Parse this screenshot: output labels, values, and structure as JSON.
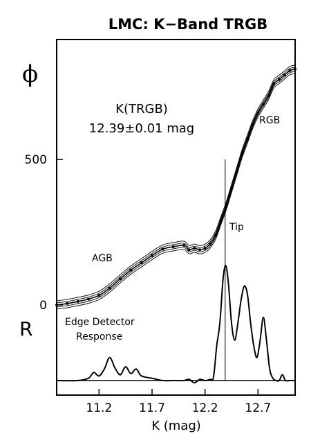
{
  "chart_data": {
    "type": "line",
    "title": "LMC: K−Band TRGB",
    "xlabel": "K (mag)",
    "y_symbol": "ϕ",
    "y2_symbol": "R",
    "xlim": [
      10.8,
      13.05
    ],
    "ylim": [
      0,
      830
    ],
    "x_ticks": [
      "11.2",
      "11.7",
      "12.2",
      "12.7"
    ],
    "x_tick_values": [
      11.2,
      11.7,
      12.2,
      12.7
    ],
    "y_ticks": [
      "0",
      "500"
    ],
    "y_tick_values": [
      0,
      500
    ],
    "grid": false,
    "result": {
      "line1": "K(TRGB)",
      "line2": "12.39±0.01 mag"
    },
    "tip_k": 12.39,
    "annotations": {
      "rgb": "RGB",
      "tip": "Tip",
      "agb": "AGB",
      "edge_line1": "Edge Detector",
      "edge_line2": "Response"
    },
    "series": [
      {
        "role": "luminosity-function",
        "x": [
          10.8,
          10.9,
          11.0,
          11.1,
          11.2,
          11.3,
          11.4,
          11.5,
          11.6,
          11.7,
          11.8,
          11.9,
          12.0,
          12.05,
          12.1,
          12.15,
          12.2,
          12.25,
          12.3,
          12.35,
          12.4,
          12.45,
          12.5,
          12.55,
          12.6,
          12.65,
          12.7,
          12.75,
          12.8,
          12.85,
          12.9,
          12.95,
          13.0,
          13.05
        ],
        "y": [
          0,
          5,
          12,
          20,
          33,
          58,
          90,
          120,
          145,
          170,
          192,
          200,
          205,
          190,
          195,
          190,
          195,
          210,
          240,
          290,
          340,
          400,
          460,
          520,
          570,
          620,
          660,
          690,
          720,
          760,
          775,
          790,
          805,
          810
        ]
      },
      {
        "role": "edge-detector-response",
        "x": [
          10.8,
          11.0,
          11.1,
          11.15,
          11.2,
          11.25,
          11.3,
          11.35,
          11.4,
          11.45,
          11.5,
          11.55,
          11.6,
          11.7,
          11.8,
          11.9,
          12.0,
          12.05,
          12.1,
          12.15,
          12.2,
          12.25,
          12.28,
          12.31,
          12.34,
          12.37,
          12.395,
          12.42,
          12.45,
          12.48,
          12.51,
          12.54,
          12.57,
          12.6,
          12.63,
          12.66,
          12.69,
          12.72,
          12.75,
          12.78,
          12.81,
          12.84,
          12.87,
          12.9,
          12.93,
          12.96,
          13.0,
          13.05
        ],
        "y": [
          0.0,
          0.0,
          0.02,
          0.07,
          0.04,
          0.1,
          0.2,
          0.11,
          0.05,
          0.12,
          0.06,
          0.1,
          0.04,
          0.02,
          0.0,
          0.0,
          0.0,
          0.01,
          -0.02,
          0.01,
          0.0,
          0.01,
          0.03,
          0.3,
          0.5,
          0.88,
          1.0,
          0.85,
          0.5,
          0.35,
          0.5,
          0.7,
          0.82,
          0.75,
          0.5,
          0.3,
          0.2,
          0.35,
          0.55,
          0.35,
          0.1,
          0.02,
          0.0,
          0.0,
          0.05,
          0.0,
          0.0,
          0.0
        ]
      }
    ]
  }
}
